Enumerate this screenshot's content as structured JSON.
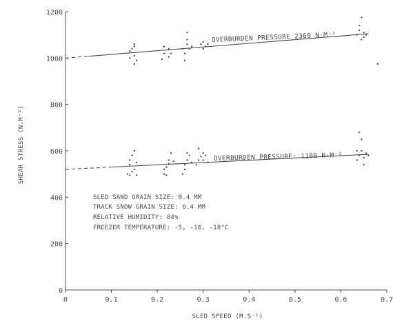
{
  "chart_data": {
    "type": "scatter",
    "xlabel": "SLED SPEED (M.S⁻¹)",
    "ylabel": "SHEAR STRESS (N.M⁻²)",
    "xlim": [
      0,
      0.7
    ],
    "ylim": [
      0,
      1200
    ],
    "x_ticks": [
      "0",
      "0.1",
      "0.2",
      "0.3",
      "0.4",
      "0.5",
      "0.6",
      "0.7"
    ],
    "y_ticks": [
      "0",
      "200",
      "400",
      "600",
      "800",
      "1000",
      "1200"
    ],
    "grid": false,
    "series": [
      {
        "name": "OVERBURDEN PRESSURE 2360 N·M⁻²",
        "line": {
          "x": [
            0,
            0.66
          ],
          "y": [
            1000,
            1105
          ],
          "dashed_until_x": 0.05
        },
        "points": [
          [
            0.14,
            1000
          ],
          [
            0.14,
            1030
          ],
          [
            0.15,
            1050
          ],
          [
            0.15,
            1060
          ],
          [
            0.15,
            1010
          ],
          [
            0.155,
            990
          ],
          [
            0.145,
            1040
          ],
          [
            0.15,
            975
          ],
          [
            0.215,
            1020
          ],
          [
            0.225,
            1040
          ],
          [
            0.225,
            1005
          ],
          [
            0.215,
            1050
          ],
          [
            0.23,
            1020
          ],
          [
            0.21,
            995
          ],
          [
            0.255,
            1040
          ],
          [
            0.265,
            1060
          ],
          [
            0.27,
            1040
          ],
          [
            0.26,
            1020
          ],
          [
            0.26,
            990
          ],
          [
            0.265,
            1080
          ],
          [
            0.265,
            1110
          ],
          [
            0.275,
            1050
          ],
          [
            0.295,
            1060
          ],
          [
            0.3,
            1070
          ],
          [
            0.305,
            1050
          ],
          [
            0.3,
            1040
          ],
          [
            0.31,
            1060
          ],
          [
            0.635,
            1100
          ],
          [
            0.64,
            1120
          ],
          [
            0.65,
            1090
          ],
          [
            0.65,
            1110
          ],
          [
            0.645,
            1080
          ],
          [
            0.655,
            1100
          ],
          [
            0.64,
            1140
          ],
          [
            0.645,
            1175
          ],
          [
            0.68,
            975
          ]
        ]
      },
      {
        "name": "OVERBURDEN PRESSURE: 1180 N·M⁻²",
        "line": {
          "x": [
            0,
            0.66
          ],
          "y": [
            520,
            585
          ],
          "dashed_until_x": 0.1
        },
        "points": [
          [
            0.135,
            500
          ],
          [
            0.14,
            540
          ],
          [
            0.14,
            560
          ],
          [
            0.145,
            580
          ],
          [
            0.15,
            600
          ],
          [
            0.15,
            520
          ],
          [
            0.155,
            550
          ],
          [
            0.145,
            510
          ],
          [
            0.14,
            495
          ],
          [
            0.155,
            495
          ],
          [
            0.215,
            500
          ],
          [
            0.22,
            530
          ],
          [
            0.225,
            545
          ],
          [
            0.225,
            560
          ],
          [
            0.23,
            590
          ],
          [
            0.22,
            495
          ],
          [
            0.215,
            520
          ],
          [
            0.235,
            555
          ],
          [
            0.255,
            500
          ],
          [
            0.26,
            540
          ],
          [
            0.265,
            560
          ],
          [
            0.27,
            580
          ],
          [
            0.265,
            590
          ],
          [
            0.26,
            520
          ],
          [
            0.275,
            550
          ],
          [
            0.285,
            540
          ],
          [
            0.29,
            560
          ],
          [
            0.295,
            575
          ],
          [
            0.3,
            590
          ],
          [
            0.3,
            560
          ],
          [
            0.31,
            550
          ],
          [
            0.29,
            610
          ],
          [
            0.305,
            580
          ],
          [
            0.635,
            560
          ],
          [
            0.64,
            580
          ],
          [
            0.645,
            600
          ],
          [
            0.65,
            570
          ],
          [
            0.655,
            590
          ],
          [
            0.645,
            650
          ],
          [
            0.64,
            680
          ],
          [
            0.65,
            540
          ],
          [
            0.66,
            580
          ],
          [
            0.635,
            600
          ]
        ]
      }
    ]
  },
  "annotations": [
    "SLED SAND GRAIN SIZE:  0.4 MM",
    "TRACK SNOW GRAIN SIZE:  0.4 MM",
    "RELATIVE HUMIDITY:  84%",
    "FREEZER TEMPERATURE:  -5, -10, -18°C"
  ],
  "colors": {
    "ink": "#4a4a4a",
    "background": "#ffffff"
  }
}
